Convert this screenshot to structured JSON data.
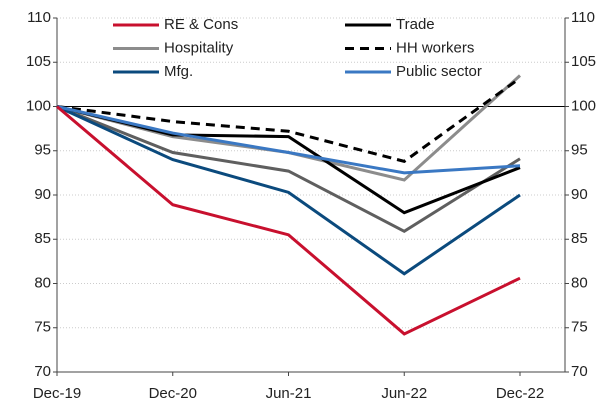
{
  "chart_data": {
    "type": "line",
    "categories": [
      "Dec-19",
      "Dec-20",
      "Jun-21",
      "Jun-22",
      "Dec-22"
    ],
    "series": [
      {
        "name": "RE & Cons",
        "color": "#c8102e",
        "values": [
          100,
          88.9,
          85.5,
          74.3,
          80.6
        ]
      },
      {
        "name": "Trade",
        "color": "#000000",
        "values": [
          100,
          96.8,
          96.6,
          88.0,
          93.1
        ]
      },
      {
        "name": "Hospitality",
        "color": "#8c8c8c",
        "values": [
          100,
          96.6,
          94.8,
          91.7,
          103.5
        ]
      },
      {
        "name": "HH workers",
        "color": "#000000",
        "dashed": true,
        "values": [
          100,
          98.3,
          97.2,
          93.8,
          103.2
        ]
      },
      {
        "name": "Mfg.",
        "color": "#0b4a7d",
        "values": [
          100,
          94.0,
          90.3,
          81.1,
          90.0
        ]
      },
      {
        "name": "Public sector",
        "color": "#3a78c3",
        "values": [
          100,
          97.0,
          94.8,
          92.5,
          93.3
        ]
      },
      {
        "color": "#5f5f5f",
        "values": [
          100,
          94.8,
          92.7,
          85.9,
          94.1
        ]
      }
    ],
    "ylim": [
      70,
      110
    ],
    "yticks": [
      70,
      75,
      80,
      85,
      90,
      95,
      100,
      105,
      110
    ],
    "y2lim": [
      70,
      110
    ],
    "y2ticks": [
      70,
      75,
      80,
      85,
      90,
      95,
      100,
      105,
      110
    ],
    "reference_line": 100,
    "grid": true
  }
}
